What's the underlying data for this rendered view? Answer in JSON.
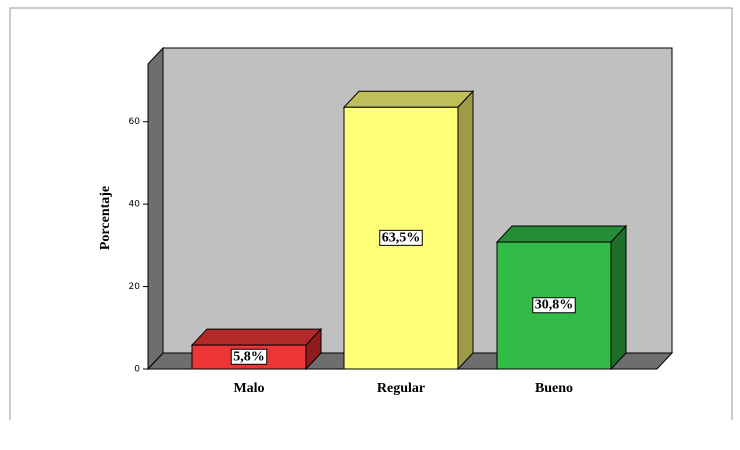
{
  "chart_data": {
    "type": "bar3d",
    "categories": [
      "Malo",
      "Regular",
      "Bueno"
    ],
    "values": [
      5.8,
      63.5,
      30.8
    ],
    "value_labels": [
      "5,8%",
      "63,5%",
      "30,8%"
    ],
    "colors": [
      "#ee3535",
      "#ffff77",
      "#33bb47"
    ],
    "side_colors": [
      "#8e1c1c",
      "#9e9a45",
      "#1f6e2a"
    ],
    "y_label": "Porcentaje",
    "ylim": [
      0,
      74
    ],
    "yticks": [
      0,
      20,
      40,
      60
    ]
  }
}
